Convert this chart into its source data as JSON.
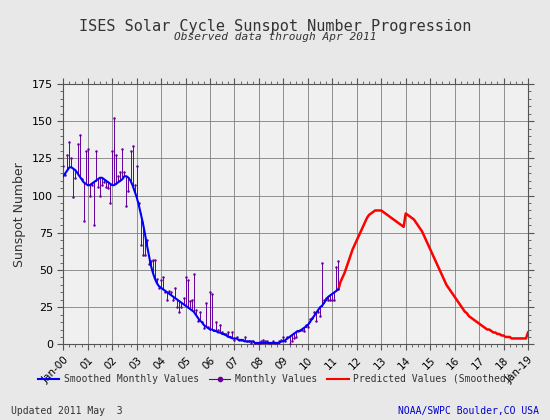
{
  "title": "ISES Solar Cycle Sunspot Number Progression",
  "subtitle": "Observed data through Apr 2011",
  "ylabel": "Sunspot Number",
  "footer_left": "Updated 2011 May  3",
  "footer_right": "NOAA/SWPC Boulder,CO USA",
  "ylim": [
    0,
    175
  ],
  "yticks": [
    0,
    25,
    50,
    75,
    100,
    125,
    150,
    175
  ],
  "background_color": "#f0f0f0",
  "grid_color": "#808080",
  "smoothed_color": "#0000ff",
  "monthly_color": "#660099",
  "predicted_color": "#ff0000",
  "legend_smoothed": "Smoothed Monthly Values",
  "legend_monthly": "Monthly Values",
  "legend_predicted": "Predicted Values (Smoothed)",
  "smoothed_x": [
    2000.0,
    2000.083,
    2000.167,
    2000.25,
    2000.333,
    2000.417,
    2000.5,
    2000.583,
    2000.667,
    2000.75,
    2000.833,
    2000.917,
    2001.0,
    2001.083,
    2001.167,
    2001.25,
    2001.333,
    2001.417,
    2001.5,
    2001.583,
    2001.667,
    2001.75,
    2001.833,
    2001.917,
    2002.0,
    2002.083,
    2002.167,
    2002.25,
    2002.333,
    2002.417,
    2002.5,
    2002.583,
    2002.667,
    2002.75,
    2002.833,
    2002.917,
    2003.0,
    2003.083,
    2003.167,
    2003.25,
    2003.333,
    2003.417,
    2003.5,
    2003.583,
    2003.667,
    2003.75,
    2003.833,
    2003.917,
    2004.0,
    2004.083,
    2004.167,
    2004.25,
    2004.333,
    2004.417,
    2004.5,
    2004.583,
    2004.667,
    2004.75,
    2004.833,
    2004.917,
    2005.0,
    2005.083,
    2005.167,
    2005.25,
    2005.333,
    2005.417,
    2005.5,
    2005.583,
    2005.667,
    2005.75,
    2005.833,
    2005.917,
    2006.0,
    2006.083,
    2006.167,
    2006.25,
    2006.333,
    2006.417,
    2006.5,
    2006.583,
    2006.667,
    2006.75,
    2006.833,
    2006.917,
    2007.0,
    2007.083,
    2007.167,
    2007.25,
    2007.333,
    2007.417,
    2007.5,
    2007.583,
    2007.667,
    2007.75,
    2007.833,
    2007.917,
    2008.0,
    2008.083,
    2008.167,
    2008.25,
    2008.333,
    2008.417,
    2008.5,
    2008.583,
    2008.667,
    2008.75,
    2008.833,
    2008.917,
    2009.0,
    2009.083,
    2009.167,
    2009.25,
    2009.333,
    2009.417,
    2009.5,
    2009.583,
    2009.667,
    2009.75,
    2009.833,
    2009.917,
    2010.0,
    2010.083,
    2010.167,
    2010.25,
    2010.333,
    2010.417,
    2010.5,
    2010.583,
    2010.667,
    2010.75,
    2010.833,
    2010.917,
    2011.0,
    2011.083,
    2011.167,
    2011.25
  ],
  "smoothed_y": [
    113,
    115,
    117,
    119,
    119,
    118,
    117,
    115,
    113,
    111,
    109,
    108,
    107,
    107,
    108,
    109,
    110,
    111,
    112,
    112,
    111,
    110,
    109,
    108,
    107,
    107,
    108,
    109,
    110,
    111,
    113,
    113,
    112,
    110,
    107,
    103,
    99,
    94,
    88,
    82,
    75,
    67,
    60,
    53,
    48,
    44,
    41,
    39,
    38,
    37,
    36,
    35,
    34,
    33,
    32,
    31,
    30,
    29,
    28,
    27,
    26,
    25,
    24,
    23,
    22,
    20,
    18,
    16,
    15,
    13,
    12,
    11,
    10,
    10,
    9,
    9,
    8,
    8,
    7,
    7,
    6,
    5,
    5,
    4,
    4,
    4,
    3,
    3,
    3,
    2,
    2,
    2,
    2,
    2,
    1,
    1,
    1,
    1,
    1,
    1,
    1,
    1,
    1,
    1,
    1,
    1,
    1,
    2,
    2,
    3,
    4,
    5,
    6,
    7,
    8,
    9,
    9,
    10,
    11,
    12,
    13,
    15,
    17,
    19,
    21,
    23,
    25,
    26,
    28,
    30,
    32,
    33,
    34,
    35,
    36,
    37
  ],
  "monthly_x": [
    2000.0,
    2000.083,
    2000.167,
    2000.25,
    2000.333,
    2000.417,
    2000.5,
    2000.583,
    2000.667,
    2000.75,
    2000.833,
    2000.917,
    2001.0,
    2001.083,
    2001.167,
    2001.25,
    2001.333,
    2001.417,
    2001.5,
    2001.583,
    2001.667,
    2001.75,
    2001.833,
    2001.917,
    2002.0,
    2002.083,
    2002.167,
    2002.25,
    2002.333,
    2002.417,
    2002.5,
    2002.583,
    2002.667,
    2002.75,
    2002.833,
    2002.917,
    2003.0,
    2003.083,
    2003.167,
    2003.25,
    2003.333,
    2003.417,
    2003.5,
    2003.583,
    2003.667,
    2003.75,
    2003.833,
    2003.917,
    2004.0,
    2004.083,
    2004.167,
    2004.25,
    2004.333,
    2004.417,
    2004.5,
    2004.583,
    2004.667,
    2004.75,
    2004.833,
    2004.917,
    2005.0,
    2005.083,
    2005.167,
    2005.25,
    2005.333,
    2005.417,
    2005.5,
    2005.583,
    2005.667,
    2005.75,
    2005.833,
    2005.917,
    2006.0,
    2006.083,
    2006.167,
    2006.25,
    2006.333,
    2006.417,
    2006.5,
    2006.583,
    2006.667,
    2006.75,
    2006.833,
    2006.917,
    2007.0,
    2007.083,
    2007.167,
    2007.25,
    2007.333,
    2007.417,
    2007.5,
    2007.583,
    2007.667,
    2007.75,
    2007.833,
    2007.917,
    2008.0,
    2008.083,
    2008.167,
    2008.25,
    2008.333,
    2008.417,
    2008.5,
    2008.583,
    2008.667,
    2008.75,
    2008.833,
    2008.917,
    2009.0,
    2009.083,
    2009.167,
    2009.25,
    2009.333,
    2009.417,
    2009.5,
    2009.583,
    2009.667,
    2009.75,
    2009.833,
    2009.917,
    2010.0,
    2010.083,
    2010.167,
    2010.25,
    2010.333,
    2010.417,
    2010.5,
    2010.583,
    2010.667,
    2010.75,
    2010.833,
    2010.917,
    2011.0,
    2011.083,
    2011.167,
    2011.25
  ],
  "monthly_y": [
    120,
    114,
    127,
    136,
    125,
    99,
    112,
    135,
    141,
    111,
    83,
    130,
    131,
    100,
    107,
    80,
    130,
    106,
    100,
    107,
    109,
    106,
    105,
    95,
    130,
    152,
    127,
    113,
    116,
    131,
    116,
    93,
    103,
    130,
    133,
    107,
    120,
    95,
    67,
    60,
    60,
    70,
    54,
    56,
    57,
    57,
    44,
    38,
    43,
    45,
    35,
    30,
    36,
    35,
    30,
    38,
    25,
    22,
    25,
    31,
    45,
    43,
    29,
    30,
    47,
    23,
    16,
    22,
    15,
    11,
    28,
    12,
    35,
    34,
    10,
    15,
    10,
    13,
    8,
    7,
    7,
    8,
    5,
    8,
    3,
    5,
    3,
    3,
    3,
    5,
    2,
    2,
    1,
    2,
    1,
    1,
    0,
    2,
    3,
    2,
    2,
    1,
    1,
    2,
    1,
    1,
    2,
    3,
    5,
    2,
    5,
    0,
    2,
    4,
    5,
    9,
    10,
    10,
    9,
    13,
    12,
    17,
    18,
    22,
    16,
    22,
    19,
    55,
    30,
    31,
    30,
    30,
    30,
    30,
    52,
    56
  ],
  "predicted_x": [
    2011.25,
    2011.333,
    2011.5,
    2011.583,
    2011.667,
    2011.75,
    2011.833,
    2011.917,
    2012.0,
    2012.083,
    2012.167,
    2012.25,
    2012.333,
    2012.417,
    2012.5,
    2012.583,
    2012.667,
    2012.75,
    2012.833,
    2012.917,
    2013.0,
    2013.083,
    2013.167,
    2013.25,
    2013.333,
    2013.417,
    2013.5,
    2013.583,
    2013.667,
    2013.75,
    2013.833,
    2013.917,
    2014.0,
    2014.083,
    2014.167,
    2014.25,
    2014.333,
    2014.417,
    2014.5,
    2014.583,
    2014.667,
    2014.75,
    2014.833,
    2014.917,
    2015.0,
    2015.083,
    2015.167,
    2015.25,
    2015.333,
    2015.417,
    2015.5,
    2015.583,
    2015.667,
    2015.75,
    2015.833,
    2015.917,
    2016.0,
    2016.083,
    2016.167,
    2016.25,
    2016.333,
    2016.417,
    2016.5,
    2016.583,
    2016.667,
    2016.75,
    2016.833,
    2016.917,
    2017.0,
    2017.083,
    2017.167,
    2017.25,
    2017.333,
    2017.417,
    2017.5,
    2017.583,
    2017.667,
    2017.75,
    2017.833,
    2017.917,
    2018.0,
    2018.083,
    2018.167,
    2018.25,
    2018.333,
    2018.417,
    2018.5,
    2018.583,
    2018.667,
    2018.75,
    2018.833,
    2018.917,
    2019.0
  ],
  "predicted_y": [
    37,
    42,
    48,
    52,
    56,
    60,
    64,
    67,
    70,
    73,
    76,
    79,
    82,
    85,
    87,
    88,
    89,
    90,
    90,
    90,
    90,
    89,
    88,
    87,
    86,
    85,
    84,
    83,
    82,
    81,
    80,
    79,
    88,
    87,
    86,
    85,
    84,
    82,
    80,
    78,
    76,
    73,
    70,
    67,
    64,
    61,
    58,
    55,
    52,
    49,
    46,
    43,
    40,
    38,
    36,
    34,
    32,
    30,
    28,
    26,
    24,
    22,
    21,
    19,
    18,
    17,
    16,
    15,
    14,
    13,
    12,
    11,
    10,
    10,
    9,
    8,
    8,
    7,
    7,
    6,
    6,
    5,
    5,
    5,
    4,
    4,
    4,
    4,
    4,
    4,
    4,
    4,
    8
  ]
}
